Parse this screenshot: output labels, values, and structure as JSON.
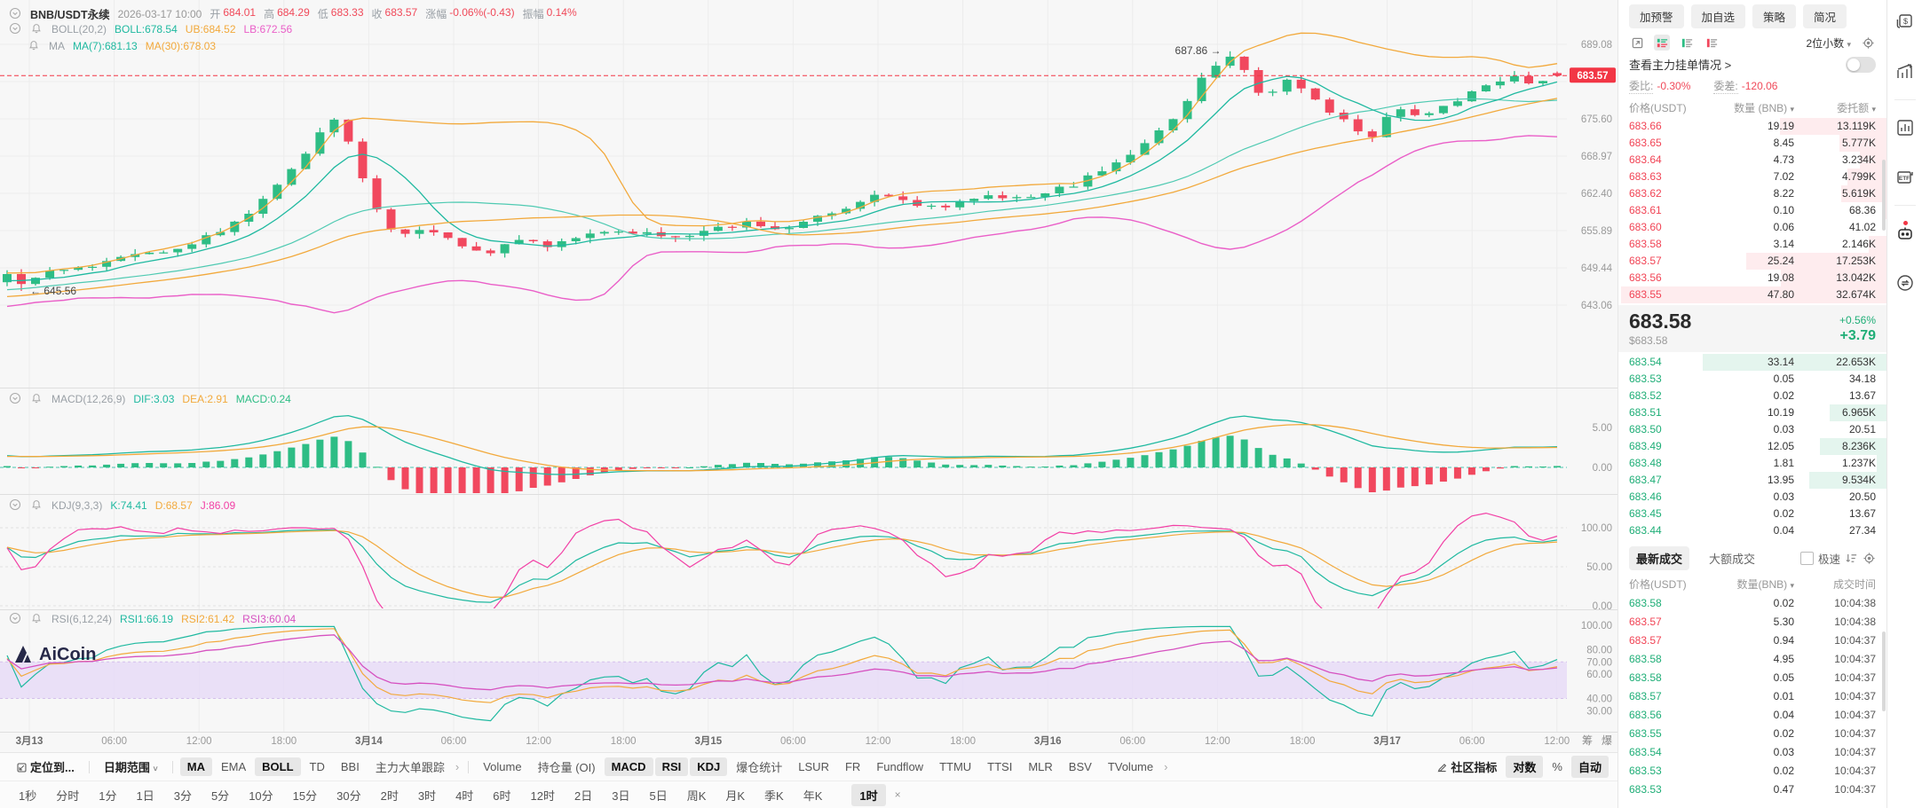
{
  "header": {
    "symbol": "BNB/USDT永续",
    "datetime": "2026-03-17 10:00",
    "fields": [
      {
        "label": "开",
        "value": "684.01"
      },
      {
        "label": "高",
        "value": "684.29"
      },
      {
        "label": "低",
        "value": "683.33"
      },
      {
        "label": "收",
        "value": "683.57"
      },
      {
        "label": "涨幅",
        "value": "-0.06%(-0.43)"
      },
      {
        "label": "振幅",
        "value": "0.14%"
      }
    ],
    "value_color": "#f04a5a"
  },
  "legends": {
    "boll": {
      "title": "BOLL(20,2)",
      "items": [
        {
          "label": "BOLL:678.54",
          "color": "#1fb9a0"
        },
        {
          "label": "UB:684.52",
          "color": "#f2a93c"
        },
        {
          "label": "LB:672.56",
          "color": "#ea5fc8"
        }
      ]
    },
    "ma": {
      "title": "MA",
      "items": [
        {
          "label": "MA(7):681.13",
          "color": "#1fb9a0"
        },
        {
          "label": "MA(30):678.03",
          "color": "#f2a93c"
        }
      ]
    },
    "macd": {
      "title": "MACD(12,26,9)",
      "items": [
        {
          "label": "DIF:3.03",
          "color": "#1fb9a0"
        },
        {
          "label": "DEA:2.91",
          "color": "#f2a93c"
        },
        {
          "label": "MACD:0.24",
          "color": "#2ebd85"
        }
      ]
    },
    "kdj": {
      "title": "KDJ(9,3,3)",
      "items": [
        {
          "label": "K:74.41",
          "color": "#1fb9a0"
        },
        {
          "label": "D:68.57",
          "color": "#f2a93c"
        },
        {
          "label": "J:86.09",
          "color": "#f23fa5"
        }
      ]
    },
    "rsi": {
      "title": "RSI(6,12,24)",
      "items": [
        {
          "label": "RSI1:66.19",
          "color": "#1fb9a0"
        },
        {
          "label": "RSI2:61.42",
          "color": "#f2a93c"
        },
        {
          "label": "RSI3:60.04",
          "color": "#d651c0"
        }
      ]
    }
  },
  "chart_data": {
    "type": "candlestick",
    "symbol": "BNB/USDT永续",
    "interval": "1时",
    "price_axis_ticks": [
      "689.08",
      "675.60",
      "668.97",
      "662.40",
      "655.89",
      "649.44",
      "643.06"
    ],
    "current_price": "683.57",
    "annotations": {
      "session_high": "687.86",
      "session_low": "645.56"
    },
    "time_ticks": [
      "3月13",
      "06:00",
      "12:00",
      "18:00",
      "3月14",
      "06:00",
      "12:00",
      "18:00",
      "3月15",
      "06:00",
      "12:00",
      "18:00",
      "3月16",
      "06:00",
      "12:00",
      "18:00",
      "3月17",
      "06:00",
      "12:00"
    ],
    "axis_extra_labels": [
      "筹",
      "爆"
    ],
    "macd_axis_ticks": [
      "5.00",
      "0.00"
    ],
    "kdj_axis_ticks": [
      "100.00",
      "50.00",
      "0.00"
    ],
    "rsi_axis_ticks": [
      "100.00",
      "80.00",
      "70.00",
      "60.00",
      "40.00",
      "30.00"
    ],
    "candle_count": 110,
    "price_path_anchors": [
      [
        0.0,
        648.5
      ],
      [
        0.01,
        646.8
      ],
      [
        0.03,
        649.0
      ],
      [
        0.06,
        650.5
      ],
      [
        0.09,
        652.0
      ],
      [
        0.12,
        654.0
      ],
      [
        0.15,
        658.0
      ],
      [
        0.17,
        663.0
      ],
      [
        0.19,
        669.0
      ],
      [
        0.205,
        674.5
      ],
      [
        0.212,
        676.2
      ],
      [
        0.222,
        671.0
      ],
      [
        0.232,
        663.0
      ],
      [
        0.245,
        657.0
      ],
      [
        0.26,
        655.5
      ],
      [
        0.272,
        656.8
      ],
      [
        0.29,
        653.5
      ],
      [
        0.31,
        652.0
      ],
      [
        0.33,
        654.5
      ],
      [
        0.35,
        653.5
      ],
      [
        0.37,
        655.0
      ],
      [
        0.4,
        656.2
      ],
      [
        0.43,
        655.2
      ],
      [
        0.45,
        656.0
      ],
      [
        0.48,
        657.5
      ],
      [
        0.5,
        656.5
      ],
      [
        0.53,
        659.0
      ],
      [
        0.55,
        661.0
      ],
      [
        0.565,
        663.0
      ],
      [
        0.58,
        661.0
      ],
      [
        0.6,
        660.0
      ],
      [
        0.62,
        661.5
      ],
      [
        0.64,
        662.5
      ],
      [
        0.655,
        661.5
      ],
      [
        0.672,
        663.0
      ],
      [
        0.69,
        664.5
      ],
      [
        0.707,
        667.0
      ],
      [
        0.725,
        670.0
      ],
      [
        0.745,
        674.0
      ],
      [
        0.762,
        679.0
      ],
      [
        0.775,
        683.0
      ],
      [
        0.786,
        686.8
      ],
      [
        0.796,
        685.0
      ],
      [
        0.81,
        679.5
      ],
      [
        0.827,
        683.0
      ],
      [
        0.85,
        678.0
      ],
      [
        0.865,
        675.0
      ],
      [
        0.88,
        672.3
      ],
      [
        0.893,
        677.5
      ],
      [
        0.913,
        676.5
      ],
      [
        0.933,
        679.0
      ],
      [
        0.952,
        681.5
      ],
      [
        0.968,
        683.5
      ],
      [
        0.984,
        682.3
      ],
      [
        1.0,
        683.57
      ]
    ],
    "colors": {
      "up": "#2ebd85",
      "down": "#f1485e",
      "teal": "#1fb9a0",
      "orange": "#f2a93c",
      "magenta": "#ea5fc8",
      "pink": "#f23fa5",
      "purple": "#d651c0",
      "tag": "#f23645",
      "rsi_band": "#e8dcf7"
    }
  },
  "watermark": "AiCoin",
  "toolbar": {
    "row1": [
      {
        "label": "定位到...",
        "bold": true,
        "icon": "locate"
      },
      {
        "divider": true
      },
      {
        "label": "日期范围",
        "bold": true,
        "caret": true
      },
      {
        "divider": true
      },
      {
        "label": "MA",
        "active": true
      },
      {
        "label": "EMA"
      },
      {
        "label": "BOLL",
        "active": true
      },
      {
        "label": "TD"
      },
      {
        "label": "BBI"
      },
      {
        "label": "主力大单跟踪"
      },
      {
        "label": "›",
        "chev": true
      },
      {
        "divider": true
      },
      {
        "label": "Volume"
      },
      {
        "label": "持仓量 (OI)"
      },
      {
        "label": "MACD",
        "active": true
      },
      {
        "label": "RSI",
        "active": true
      },
      {
        "label": "KDJ",
        "active": true
      },
      {
        "label": "爆仓统计"
      },
      {
        "label": "LSUR"
      },
      {
        "label": "FR"
      },
      {
        "label": "Fundflow"
      },
      {
        "label": "TTMU"
      },
      {
        "label": "TTSI"
      },
      {
        "label": "MLR"
      },
      {
        "label": "BSV"
      },
      {
        "label": "TVolume"
      },
      {
        "label": "›",
        "chev": true
      }
    ],
    "row1_right": [
      {
        "label": "社区指标",
        "bold": true,
        "icon": "edit"
      },
      {
        "label": "对数",
        "active": true
      },
      {
        "label": "%"
      },
      {
        "label": "自动",
        "active": true
      }
    ],
    "row2": [
      "1秒",
      "分时",
      "1分",
      "1日",
      "3分",
      "5分",
      "10分",
      "15分",
      "30分",
      "2时",
      "3时",
      "4时",
      "6时",
      "12时",
      "2日",
      "3日",
      "5日",
      "周K",
      "月K",
      "季K",
      "年K"
    ],
    "row2_active": "1时",
    "row2_close": "×"
  },
  "orderbook": {
    "buttons": [
      "加预警",
      "加自选",
      "策略",
      "简况"
    ],
    "precision": "2位小数",
    "main_orders_link": "查看主力挂单情况 >",
    "ratio_label": "委比:",
    "ratio_value": "-0.30%",
    "diff_label": "委差:",
    "diff_value": "-120.06",
    "columns": [
      "价格(USDT)",
      "数量 (BNB)",
      "委托额"
    ],
    "asks": [
      [
        "683.66",
        "19.19",
        "13.119K"
      ],
      [
        "683.65",
        "8.45",
        "5.777K"
      ],
      [
        "683.64",
        "4.73",
        "3.234K"
      ],
      [
        "683.63",
        "7.02",
        "4.799K"
      ],
      [
        "683.62",
        "8.22",
        "5.619K"
      ],
      [
        "683.61",
        "0.10",
        "68.36"
      ],
      [
        "683.60",
        "0.06",
        "41.02"
      ],
      [
        "683.58",
        "3.14",
        "2.146K"
      ],
      [
        "683.57",
        "25.24",
        "17.253K"
      ],
      [
        "683.56",
        "19.08",
        "13.042K"
      ],
      [
        "683.55",
        "47.80",
        "32.674K"
      ]
    ],
    "last_price": "683.58",
    "last_price_usd": "$683.58",
    "change_pct": "+0.56%",
    "change_abs": "+3.79",
    "bids": [
      [
        "683.54",
        "33.14",
        "22.653K"
      ],
      [
        "683.53",
        "0.05",
        "34.18"
      ],
      [
        "683.52",
        "0.02",
        "13.67"
      ],
      [
        "683.51",
        "10.19",
        "6.965K"
      ],
      [
        "683.50",
        "0.03",
        "20.51"
      ],
      [
        "683.49",
        "12.05",
        "8.236K"
      ],
      [
        "683.48",
        "1.81",
        "1.237K"
      ],
      [
        "683.47",
        "13.95",
        "9.534K"
      ],
      [
        "683.46",
        "0.03",
        "20.50"
      ],
      [
        "683.45",
        "0.02",
        "13.67"
      ],
      [
        "683.44",
        "0.04",
        "27.34"
      ]
    ]
  },
  "trades": {
    "tab_latest": "最新成交",
    "tab_block": "大额成交",
    "fast_label": "极速",
    "columns": [
      "价格(USDT)",
      "数量(BNB)",
      "成交时间"
    ],
    "rows": [
      [
        "683.58",
        "0.02",
        "10:04:38",
        "up"
      ],
      [
        "683.57",
        "5.30",
        "10:04:38",
        "down"
      ],
      [
        "683.57",
        "0.94",
        "10:04:37",
        "down"
      ],
      [
        "683.58",
        "4.95",
        "10:04:37",
        "up"
      ],
      [
        "683.58",
        "0.05",
        "10:04:37",
        "up"
      ],
      [
        "683.57",
        "0.01",
        "10:04:37",
        "up"
      ],
      [
        "683.56",
        "0.04",
        "10:04:37",
        "up"
      ],
      [
        "683.55",
        "0.02",
        "10:04:37",
        "up"
      ],
      [
        "683.54",
        "0.03",
        "10:04:37",
        "up"
      ],
      [
        "683.53",
        "0.02",
        "10:04:37",
        "up"
      ],
      [
        "683.53",
        "0.47",
        "10:04:37",
        "up"
      ]
    ]
  },
  "side_icons": {
    "etf_text": "ETF"
  }
}
